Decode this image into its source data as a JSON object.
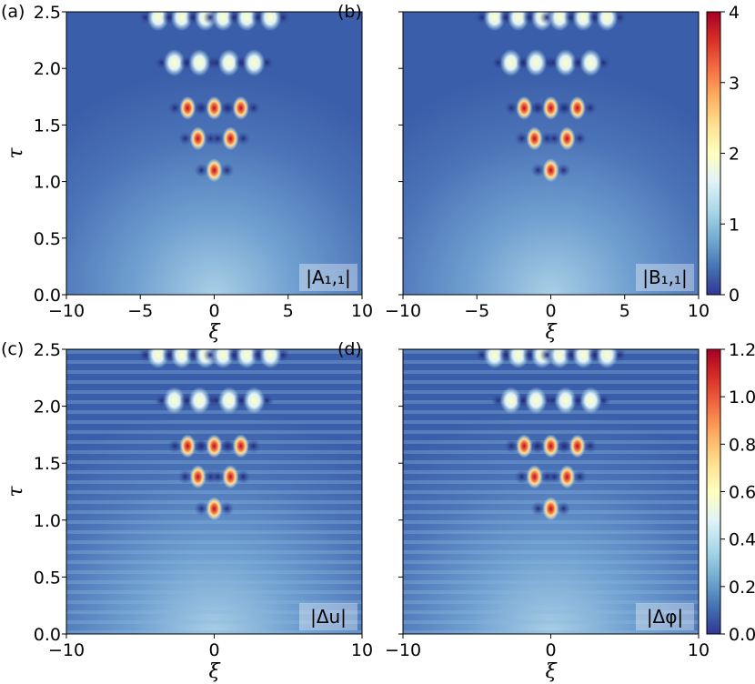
{
  "chart_data": [
    {
      "type": "heatmap",
      "panel_label": "(a)",
      "field_label": "|A₁,₁|",
      "xlabel": "ξ",
      "ylabel": "τ",
      "xlim": [
        -10,
        10
      ],
      "ylim": [
        0,
        2.5
      ],
      "x_ticks": [
        "−10",
        "−5",
        "0",
        "5",
        "10"
      ],
      "y_ticks": [
        "0.0",
        "0.5",
        "1.0",
        "1.5",
        "2.0",
        "2.5"
      ],
      "colorbar": {
        "range": [
          0,
          4
        ],
        "ticks": [
          "0",
          "1",
          "2",
          "3",
          "4"
        ]
      },
      "colormap": "RdYlBu_r",
      "peaks": [
        {
          "x": 0,
          "y": 1.1,
          "value": 4
        }
      ]
    },
    {
      "type": "heatmap",
      "panel_label": "(b)",
      "field_label": "|B₁,₁|",
      "xlabel": "ξ",
      "ylabel": "",
      "xlim": [
        -10,
        10
      ],
      "ylim": [
        0,
        2.5
      ],
      "x_ticks": [
        "−10",
        "−5",
        "0",
        "5",
        "10"
      ],
      "colorbar": {
        "range": [
          0,
          4
        ],
        "ticks": [
          "0",
          "1",
          "2",
          "3",
          "4"
        ]
      },
      "colormap": "RdYlBu_r",
      "peaks": [
        {
          "x": 0,
          "y": 1.1,
          "value": 4
        }
      ]
    },
    {
      "type": "heatmap",
      "panel_label": "(c)",
      "field_label": "|Δu|",
      "xlabel": "ξ",
      "ylabel": "τ",
      "xlim": [
        -10,
        10
      ],
      "ylim": [
        0,
        2.5
      ],
      "x_ticks": [
        "−10",
        "0",
        "10"
      ],
      "y_ticks": [
        "0.0",
        "0.5",
        "1.0",
        "1.5",
        "2.0",
        "2.5"
      ],
      "colorbar": {
        "range": [
          0,
          1.2
        ],
        "ticks": [
          "0.0",
          "0.2",
          "0.4",
          "0.6",
          "0.8",
          "1.0",
          "1.2"
        ]
      },
      "colormap": "RdYlBu_r",
      "peaks": [
        {
          "x": 0,
          "y": 1.1,
          "value": 1.2
        }
      ]
    },
    {
      "type": "heatmap",
      "panel_label": "(d)",
      "field_label": "|Δφ|",
      "xlabel": "ξ",
      "ylabel": "",
      "xlim": [
        -10,
        10
      ],
      "ylim": [
        0,
        2.5
      ],
      "x_ticks": [
        "−10",
        "0",
        "10"
      ],
      "colorbar": {
        "range": [
          0,
          1.2
        ],
        "ticks": [
          "0.0",
          "0.2",
          "0.4",
          "0.6",
          "0.8",
          "1.0",
          "1.2"
        ]
      },
      "colormap": "RdYlBu_r",
      "peaks": [
        {
          "x": 0,
          "y": 1.1,
          "value": 1.2
        }
      ]
    }
  ],
  "colors": {
    "background": "#3b5fa8",
    "colormap_stops": [
      "#313695",
      "#4575b4",
      "#74add1",
      "#abd9e9",
      "#e0f3f8",
      "#ffffbf",
      "#fee090",
      "#fdae61",
      "#f46d43",
      "#d73027",
      "#a50026"
    ]
  }
}
